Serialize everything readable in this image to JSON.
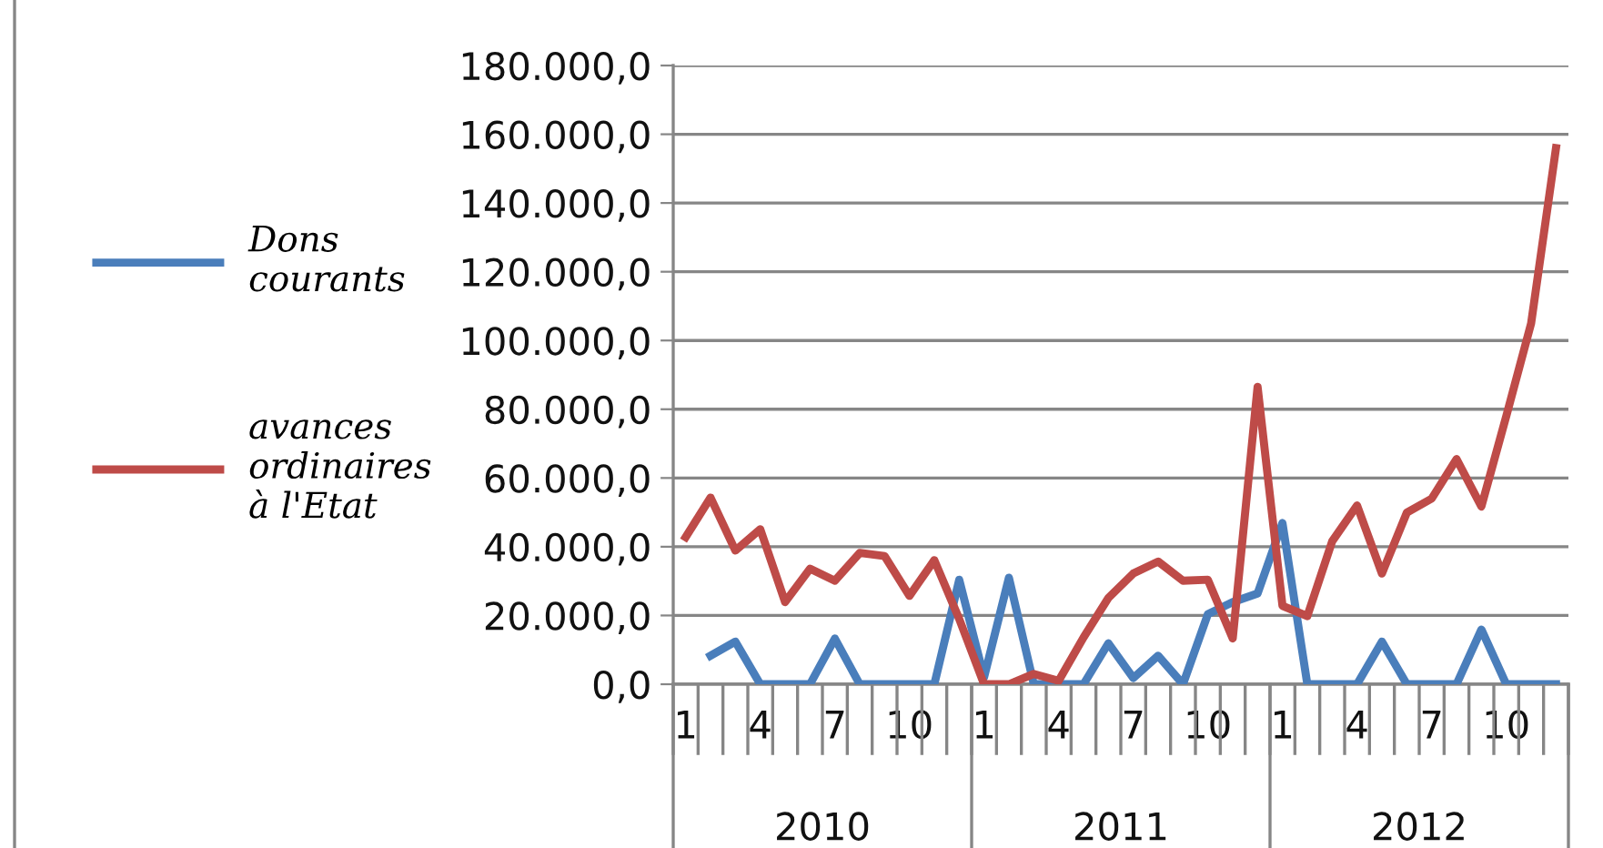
{
  "chart_data": {
    "type": "line",
    "categories": [
      "1",
      null,
      null,
      "4",
      null,
      null,
      "7",
      null,
      null,
      "10",
      null,
      null,
      "1",
      null,
      null,
      "4",
      null,
      null,
      "7",
      null,
      null,
      "10",
      null,
      null,
      "1",
      null,
      null,
      "4",
      null,
      null,
      "7",
      null,
      null,
      "10",
      null,
      null
    ],
    "annotations": [
      "2010",
      "2011",
      "2012"
    ],
    "series": [
      {
        "name": "Dons courants",
        "color": "#4a7ebb",
        "values": [
          null,
          8300,
          12400,
          0,
          0,
          0,
          13300,
          0,
          0,
          0,
          0,
          30400,
          2000,
          31000,
          0,
          0,
          0,
          11900,
          1800,
          8300,
          0,
          20400,
          23900,
          26400,
          46900,
          0,
          0,
          0,
          12400,
          0,
          0,
          0,
          15900,
          0,
          0,
          0
        ]
      },
      {
        "name": "avances ordinaires à l'Etat",
        "color": "#be4b48",
        "values": [
          42800,
          54300,
          38900,
          45100,
          23900,
          33600,
          30100,
          38200,
          37300,
          25700,
          36100,
          19000,
          0,
          0,
          3000,
          1000,
          13600,
          25100,
          32200,
          35700,
          30100,
          30400,
          13300,
          86500,
          22800,
          19800,
          41600,
          52000,
          32200,
          49900,
          54000,
          65500,
          51700,
          78000,
          105000,
          156000
        ]
      }
    ],
    "ylim": [
      0,
      180000
    ],
    "yticks": [
      {
        "value": 0,
        "label": "0,0"
      },
      {
        "value": 20000,
        "label": "20.000,0"
      },
      {
        "value": 40000,
        "label": "40.000,0"
      },
      {
        "value": 60000,
        "label": "60.000,0"
      },
      {
        "value": 80000,
        "label": "80.000,0"
      },
      {
        "value": 100000,
        "label": "100.000,0"
      },
      {
        "value": 120000,
        "label": "120.000,0"
      },
      {
        "value": 140000,
        "label": "140.000,0"
      },
      {
        "value": 160000,
        "label": "160.000,0"
      },
      {
        "value": 180000,
        "label": "180.000,0"
      }
    ],
    "grid": "y",
    "legend": "left",
    "marker": "none",
    "line_style": "solid"
  }
}
